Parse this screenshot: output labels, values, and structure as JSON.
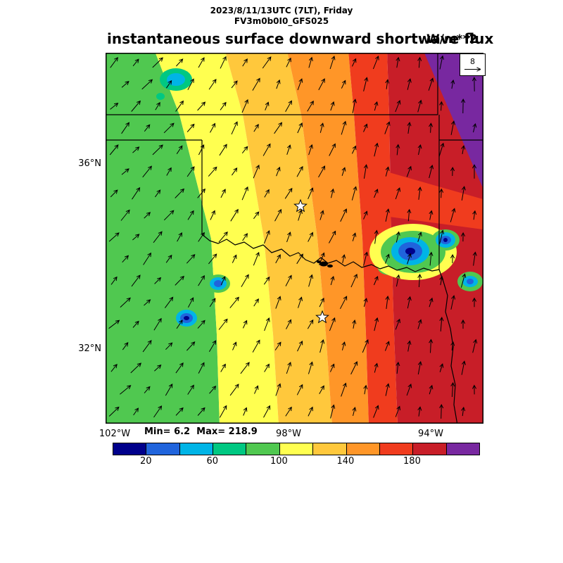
{
  "header": {
    "datetime_line": "2023/8/11/13UTC (7LT), Friday",
    "model_line": "FV3m0b0I0_GFS025",
    "title": "instantaneous surface downward shortwave flux",
    "units": "W/m**2"
  },
  "map": {
    "ref_vector_label": "8",
    "min_max_label": "Min= 6.2  Max= 218.9",
    "lat_ticks": [
      {
        "label": "36°N"
      },
      {
        "label": "32°N"
      }
    ],
    "lon_ticks": [
      {
        "label": "102°W"
      },
      {
        "label": "98°W"
      },
      {
        "label": "94°W"
      }
    ]
  },
  "chart_data": {
    "type": "heatmap",
    "title": "instantaneous surface downward shortwave flux",
    "units": "W/m**2",
    "valid_time": "2023/8/11/13UTC (7LT), Friday",
    "model": "FV3m0b0I0_GFS025",
    "min": 6.2,
    "max": 218.9,
    "region": {
      "lat_ticks": [
        "36°N",
        "32°N"
      ],
      "lon_ticks": [
        "102°W",
        "98°W",
        "94°W"
      ]
    },
    "colorbar": {
      "levels": [
        0,
        20,
        40,
        60,
        80,
        100,
        120,
        140,
        160,
        180,
        200,
        220
      ],
      "tick_labels": [
        20,
        60,
        100,
        140,
        180
      ],
      "colors": [
        "#00008b",
        "#2064dc",
        "#00b4e6",
        "#00c882",
        "#50c850",
        "#ffff50",
        "#ffc83c",
        "#ff9628",
        "#f03c1e",
        "#c81e28",
        "#7828a0"
      ]
    },
    "field_summary": "Flux increases eastward in slanted bands from ~60-80 W/m**2 (green, west) through yellow/orange/red to ~200-220 W/m**2 (purple, northeast corner); embedded low-flux cloud pockets (blue cores down to 6.2) near the southeast and scattered in the west",
    "wind": {
      "reference_value": 8,
      "pattern": "southerly flow veering from southwesterly (west) to southerly (east)"
    },
    "markers": {
      "stars": 2,
      "star_note": "open star city markers within the mapped region"
    }
  }
}
